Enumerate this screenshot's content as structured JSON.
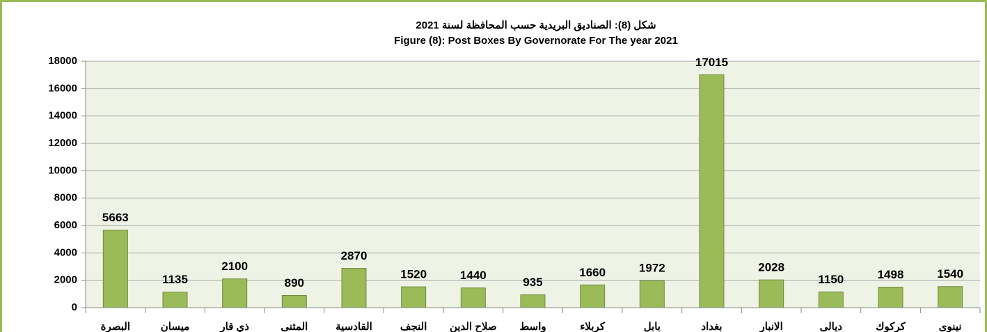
{
  "chart_data": {
    "type": "bar",
    "title": "شكل (8): الصناديق البريدية حسب المحافظة لسنة 2021",
    "subtitle": "Figure (8): Post Boxes By Governorate For The year 2021",
    "categories": [
      "البصرة",
      "ميسان",
      "ذي قار",
      "المثنى",
      "القادسية",
      "النجف",
      "صلاح الدين",
      "واسط",
      "كربلاء",
      "بابل",
      "بغداد",
      "الانبار",
      "ديالى",
      "كركوك",
      "نينوى"
    ],
    "values": [
      5663,
      1135,
      2100,
      890,
      2870,
      1520,
      1440,
      935,
      1660,
      1972,
      17015,
      2028,
      1150,
      1498,
      1540
    ],
    "color": "#9bbb59",
    "ylim": [
      0,
      18000
    ],
    "yticks": [
      0,
      2000,
      4000,
      6000,
      8000,
      10000,
      12000,
      14000,
      16000,
      18000
    ],
    "grid": true
  }
}
